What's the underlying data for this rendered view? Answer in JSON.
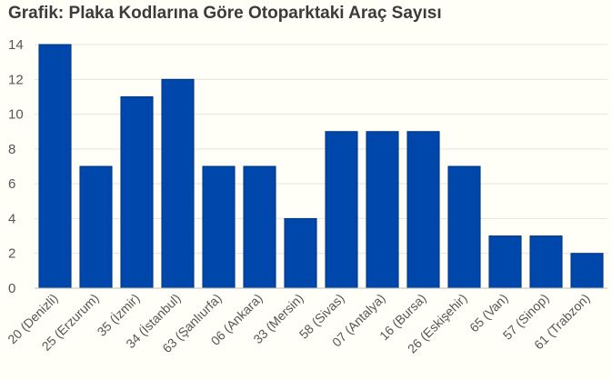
{
  "chart_data": {
    "type": "bar",
    "title": "Grafik: Plaka Kodlarına Göre Otoparktaki Araç Sayısı",
    "xlabel": "",
    "ylabel": "",
    "categories": [
      "20 (Denizli)",
      "25 (Erzurum)",
      "35 (İzmir)",
      "34 (İstanbul)",
      "63 (Şanlıurfa)",
      "06 (Ankara)",
      "33 (Mersin)",
      "58 (Sivas)",
      "07 (Antalya)",
      "16 (Bursa)",
      "26 (Eskişehir)",
      "65 (Van)",
      "57 (Sinop)",
      "61 (Trabzon)"
    ],
    "values": [
      14,
      7,
      11,
      12,
      7,
      7,
      4,
      9,
      9,
      9,
      7,
      3,
      3,
      2
    ],
    "ylim": [
      0,
      14
    ],
    "yticks": [
      0,
      2,
      4,
      6,
      8,
      10,
      12,
      14
    ],
    "grid": true,
    "legend": "none",
    "bar_color": "#0047ab"
  }
}
